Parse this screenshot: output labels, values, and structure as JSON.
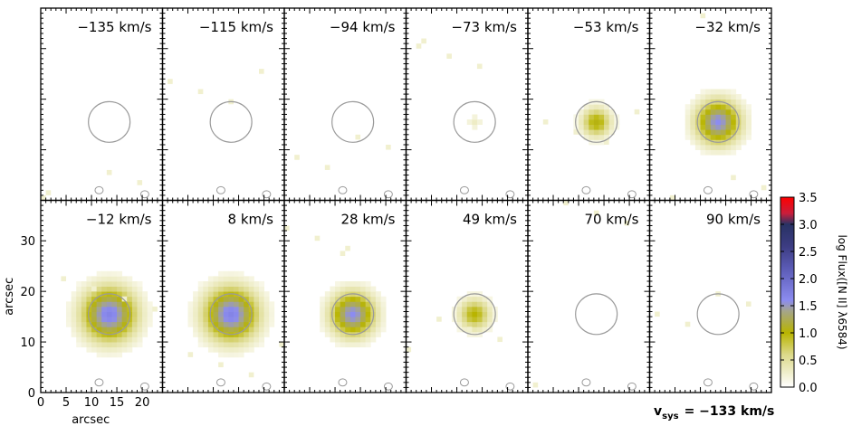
{
  "chart_data": {
    "type": "heatmap",
    "panel_velocities": [
      "−135 km/s",
      "−115 km/s",
      "−94 km/s",
      "−73 km/s",
      "−53 km/s",
      "−32 km/s",
      "−12 km/s",
      "8 km/s",
      "28 km/s",
      "49 km/s",
      "70 km/s",
      "90 km/s"
    ],
    "xlabel": "arcsec",
    "ylabel": "arcsec",
    "xlim": [
      0,
      24
    ],
    "ylim": [
      0,
      38
    ],
    "xticks": [
      "0",
      "5",
      "10",
      "15",
      "20"
    ],
    "yticks": [
      "0",
      "10",
      "20",
      "30"
    ],
    "colorbar": {
      "label": "log Flux([N II] λ6584)",
      "range": [
        0.0,
        3.5
      ],
      "ticks": [
        "0.0",
        "0.5",
        "1.0",
        "1.5",
        "2.0",
        "2.5",
        "3.0",
        "3.5"
      ],
      "stops": [
        {
          "v": 0.0,
          "color": "#ffffff"
        },
        {
          "v": 0.6,
          "color": "#dcd98a"
        },
        {
          "v": 1.0,
          "color": "#b8b400"
        },
        {
          "v": 1.4,
          "color": "#a5a58a"
        },
        {
          "v": 1.6,
          "color": "#8c8cf0"
        },
        {
          "v": 2.2,
          "color": "#5a5ab4"
        },
        {
          "v": 2.6,
          "color": "#3c3c82"
        },
        {
          "v": 3.0,
          "color": "#283264"
        },
        {
          "v": 3.2,
          "color": "#c81e3c"
        },
        {
          "v": 3.5,
          "color": "#ff0000"
        }
      ]
    },
    "source_center": [
      13.5,
      15.5
    ],
    "peak_log_flux": [
      0.0,
      0.0,
      0.0,
      0.3,
      1.05,
      1.6,
      1.7,
      1.7,
      1.6,
      1.0,
      0.0,
      0.0
    ],
    "source_radius": [
      0,
      0,
      0,
      1.5,
      3.0,
      4.5,
      5.5,
      5.5,
      4.5,
      3.2,
      0,
      0
    ],
    "contour_radius": 4.1,
    "systemic_velocity": {
      "label": "v",
      "subscript": "sys",
      "value": "= −133 km/s"
    }
  }
}
